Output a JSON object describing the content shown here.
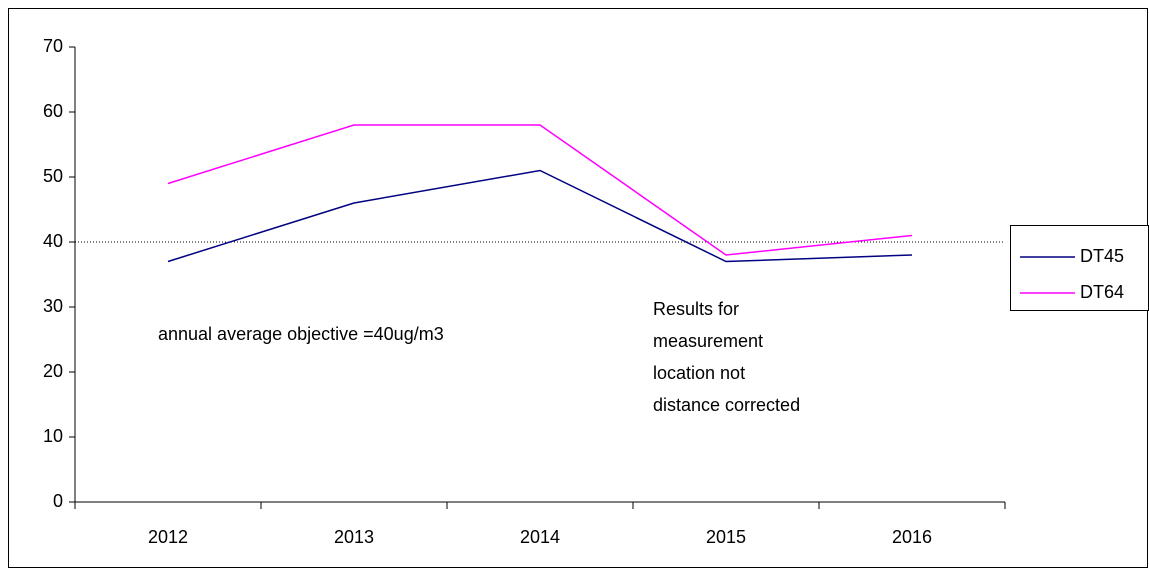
{
  "chart_data": {
    "type": "line",
    "categories": [
      "2012",
      "2013",
      "2014",
      "2015",
      "2016"
    ],
    "series": [
      {
        "name": "DT45",
        "color": "#000080",
        "values": [
          37,
          46,
          51,
          37,
          38
        ]
      },
      {
        "name": "DT64",
        "color": "#ff00ff",
        "values": [
          49,
          58,
          58,
          38,
          41
        ]
      }
    ],
    "ylim": [
      0,
      70
    ],
    "yticks": [
      0,
      10,
      20,
      30,
      40,
      50,
      60,
      70
    ],
    "reference_line": 40,
    "annotations": [
      [
        "annual average objective =40ug/m3"
      ],
      [
        "Results for",
        "measurement",
        "location not",
        "distance corrected"
      ]
    ],
    "legend": "right"
  }
}
